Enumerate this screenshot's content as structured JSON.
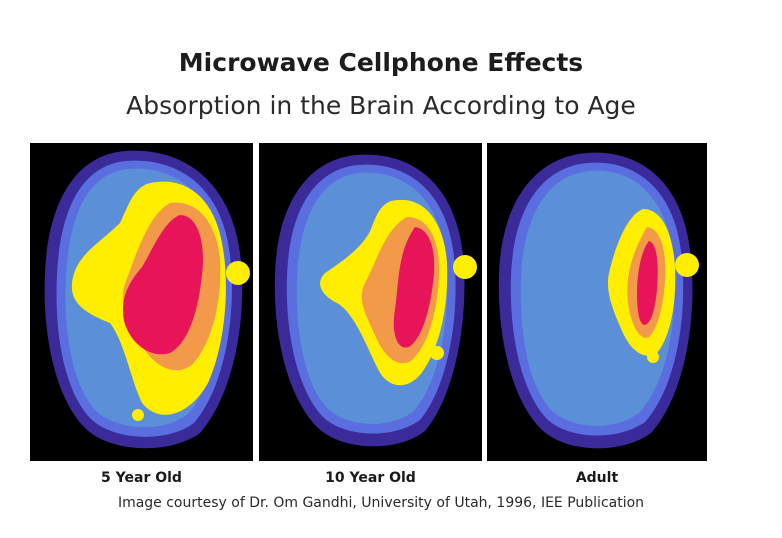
{
  "title": "Microwave Cellphone Effects",
  "subtitle": "Absorption in the Brain According to Age",
  "panels": [
    {
      "label": "5 Year Old"
    },
    {
      "label": "10 Year Old"
    },
    {
      "label": "Adult"
    }
  ],
  "credit": "Image courtesy of Dr. Om Gandhi, University of Utah, 1996, IEE Publication",
  "colors": {
    "background": "#000000",
    "outer_ring": "#3a2a9a",
    "outer_edge": "#5a6ee0",
    "head_tissue": "#5b8fd8",
    "low_absorption": "#ffee00",
    "mid_absorption": "#f39a4a",
    "high_absorption": "#e8145a"
  }
}
